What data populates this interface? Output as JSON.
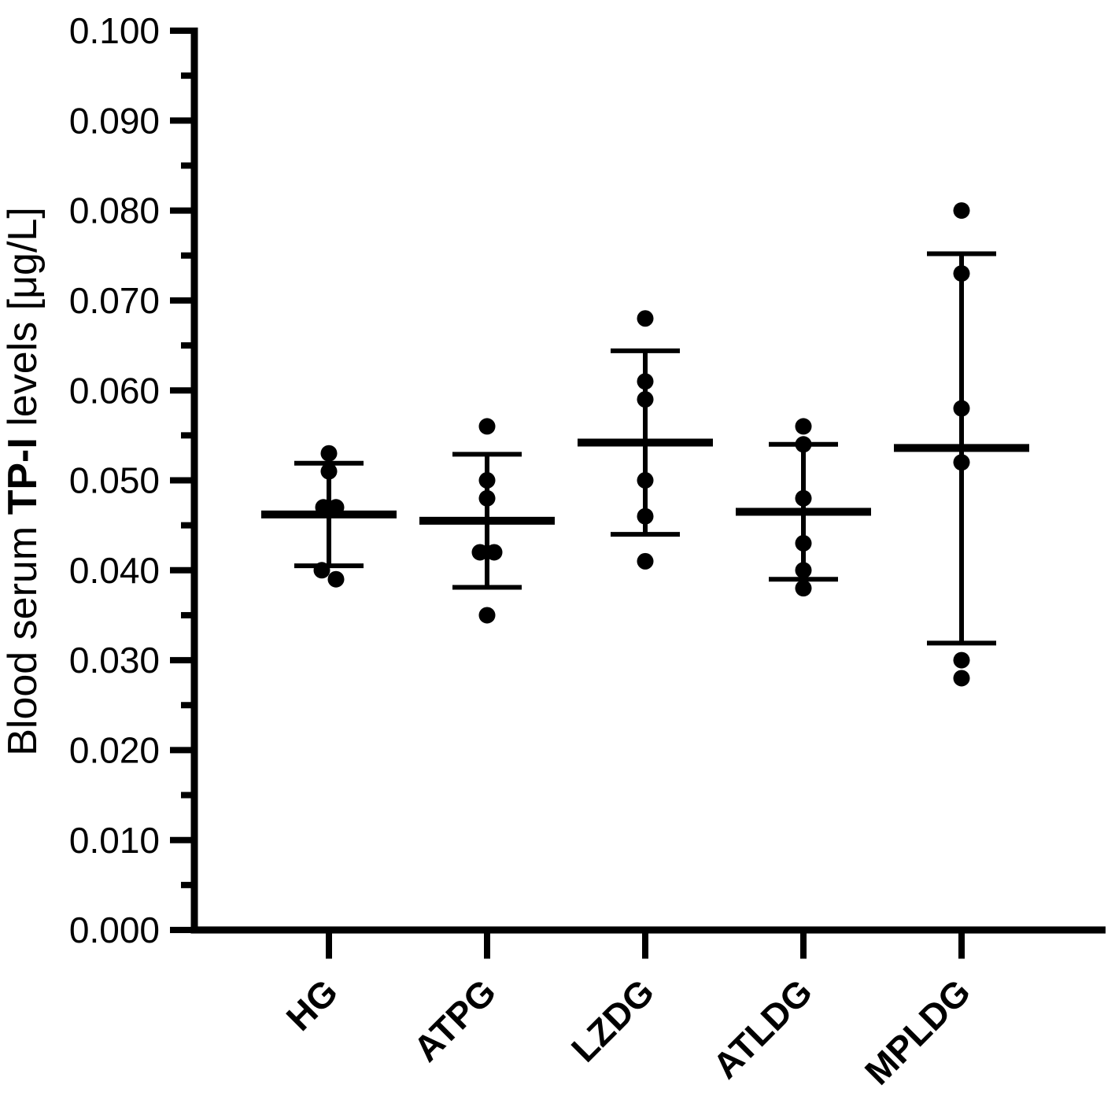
{
  "figure": {
    "background_color": "#ffffff",
    "ink_color": "#000000"
  },
  "chart_data": {
    "type": "scatter",
    "subtype": "column-dot-plot-with-mean-sd-error-bars",
    "title": "",
    "ylabel_parts": {
      "pre": "Blood serum ",
      "bold": "TP-I",
      "post": " levels [μg/L]"
    },
    "xlabel": "",
    "ylim": [
      0.0,
      0.1
    ],
    "ytick_step": 0.01,
    "ytick_minor_step": 0.005,
    "ytick_labels": [
      "0.000",
      "0.010",
      "0.020",
      "0.030",
      "0.040",
      "0.050",
      "0.060",
      "0.070",
      "0.080",
      "0.090",
      "0.100"
    ],
    "grid": false,
    "legend": false,
    "error_bar_type": "mean ± SD",
    "categories": [
      "HG",
      "ATPG",
      "LZDG",
      "ATLDG",
      "MPLDG"
    ],
    "groups": [
      {
        "label": "HG",
        "mean": 0.0462,
        "sd_upper": 0.0519,
        "sd_lower": 0.0405,
        "points": [
          {
            "v": 0.053,
            "dx": 0
          },
          {
            "v": 0.051,
            "dx": 0
          },
          {
            "v": 0.047,
            "dx": -7
          },
          {
            "v": 0.047,
            "dx": 9
          },
          {
            "v": 0.04,
            "dx": -9
          },
          {
            "v": 0.039,
            "dx": 9
          }
        ]
      },
      {
        "label": "ATPG",
        "mean": 0.0455,
        "sd_upper": 0.0529,
        "sd_lower": 0.0381,
        "points": [
          {
            "v": 0.056,
            "dx": 0
          },
          {
            "v": 0.05,
            "dx": 0
          },
          {
            "v": 0.048,
            "dx": 0
          },
          {
            "v": 0.042,
            "dx": -9
          },
          {
            "v": 0.042,
            "dx": 9
          },
          {
            "v": 0.035,
            "dx": 0
          }
        ]
      },
      {
        "label": "LZDG",
        "mean": 0.0542,
        "sd_upper": 0.0644,
        "sd_lower": 0.044,
        "points": [
          {
            "v": 0.068,
            "dx": 0
          },
          {
            "v": 0.061,
            "dx": 0
          },
          {
            "v": 0.059,
            "dx": 0
          },
          {
            "v": 0.05,
            "dx": 0
          },
          {
            "v": 0.046,
            "dx": 0
          },
          {
            "v": 0.041,
            "dx": 0
          }
        ]
      },
      {
        "label": "ATLDG",
        "mean": 0.0465,
        "sd_upper": 0.054,
        "sd_lower": 0.039,
        "points": [
          {
            "v": 0.056,
            "dx": 0
          },
          {
            "v": 0.054,
            "dx": 0
          },
          {
            "v": 0.048,
            "dx": 0
          },
          {
            "v": 0.043,
            "dx": 0
          },
          {
            "v": 0.04,
            "dx": 0
          },
          {
            "v": 0.038,
            "dx": 0
          }
        ]
      },
      {
        "label": "MPLDG",
        "mean": 0.0536,
        "sd_upper": 0.0752,
        "sd_lower": 0.0319,
        "points": [
          {
            "v": 0.08,
            "dx": 0
          },
          {
            "v": 0.073,
            "dx": 0
          },
          {
            "v": 0.058,
            "dx": 0
          },
          {
            "v": 0.052,
            "dx": 0
          },
          {
            "v": 0.03,
            "dx": 0
          },
          {
            "v": 0.028,
            "dx": 0
          }
        ]
      }
    ]
  }
}
